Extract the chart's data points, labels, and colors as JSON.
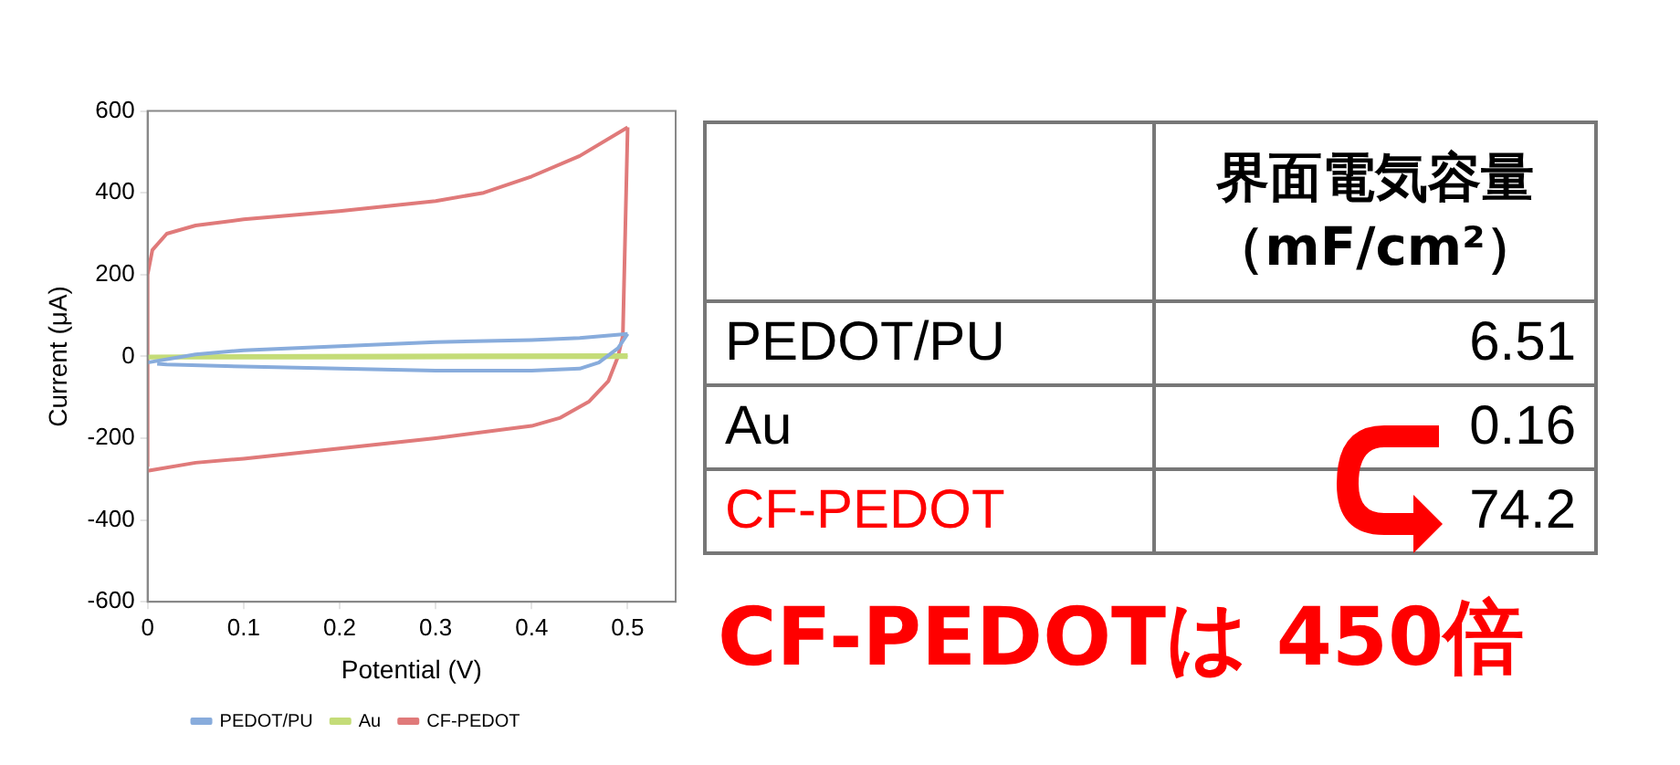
{
  "chart_data": [
    {
      "type": "line",
      "xlabel": "Potential (V)",
      "ylabel": "Current (μA)",
      "xlim": [
        0,
        0.55
      ],
      "xticks": [
        0,
        0.1,
        0.2,
        0.3,
        0.4,
        0.5
      ],
      "ylim": [
        -600,
        600
      ],
      "yticks": [
        -600,
        -400,
        -200,
        0,
        200,
        400,
        600
      ],
      "grid": false,
      "legend": "bottom",
      "marker": "none",
      "series": [
        {
          "name": "PEDOT/PU",
          "color": "#88acdc",
          "x": [
            0,
            0.05,
            0.1,
            0.2,
            0.3,
            0.4,
            0.45,
            0.5
          ],
          "values": [
            -15,
            5,
            15,
            25,
            35,
            40,
            45,
            55
          ]
        },
        {
          "color": "#88acdc",
          "x": [
            0.5,
            0.49,
            0.47,
            0.45,
            0.4,
            0.3,
            0.2,
            0.1,
            0.02,
            0.01
          ],
          "values": [
            55,
            20,
            -15,
            -30,
            -35,
            -35,
            -30,
            -25,
            -20,
            -18
          ]
        },
        {
          "name": "Au",
          "color": "#c4dc78",
          "x": [
            0,
            0.25,
            0.5
          ],
          "values": [
            0,
            2,
            3
          ]
        },
        {
          "color": "#c4dc78",
          "x": [
            0.5,
            0.25,
            0
          ],
          "values": [
            -2,
            -3,
            -3
          ]
        },
        {
          "name": "CF-PEDOT",
          "color": "#e07a7a",
          "x": [
            0,
            0,
            0.005,
            0.02,
            0.05,
            0.1,
            0.2,
            0.3,
            0.35,
            0.4,
            0.45,
            0.5
          ],
          "values": [
            -270,
            200,
            260,
            300,
            320,
            335,
            355,
            380,
            400,
            440,
            490,
            560
          ]
        },
        {
          "color": "#e07a7a",
          "x": [
            0.5,
            0.495,
            0.49,
            0.48,
            0.46,
            0.43,
            0.4,
            0.3,
            0.2,
            0.1,
            0.05,
            0
          ],
          "values": [
            560,
            50,
            0,
            -60,
            -110,
            -150,
            -170,
            -200,
            -225,
            -250,
            -260,
            -280
          ]
        }
      ]
    },
    {
      "type": "other",
      "title": "界面電気容量（mF/cm²）",
      "categories": [
        "PEDOT/PU",
        "Au",
        "CF-PEDOT"
      ],
      "values": [
        6.51,
        0.16,
        74.2
      ],
      "colors": [
        "#000000",
        "#000000",
        "#ff0000"
      ],
      "data_labels": true,
      "annotations": [
        "CF-PEDOTは 450倍"
      ]
    }
  ]
}
